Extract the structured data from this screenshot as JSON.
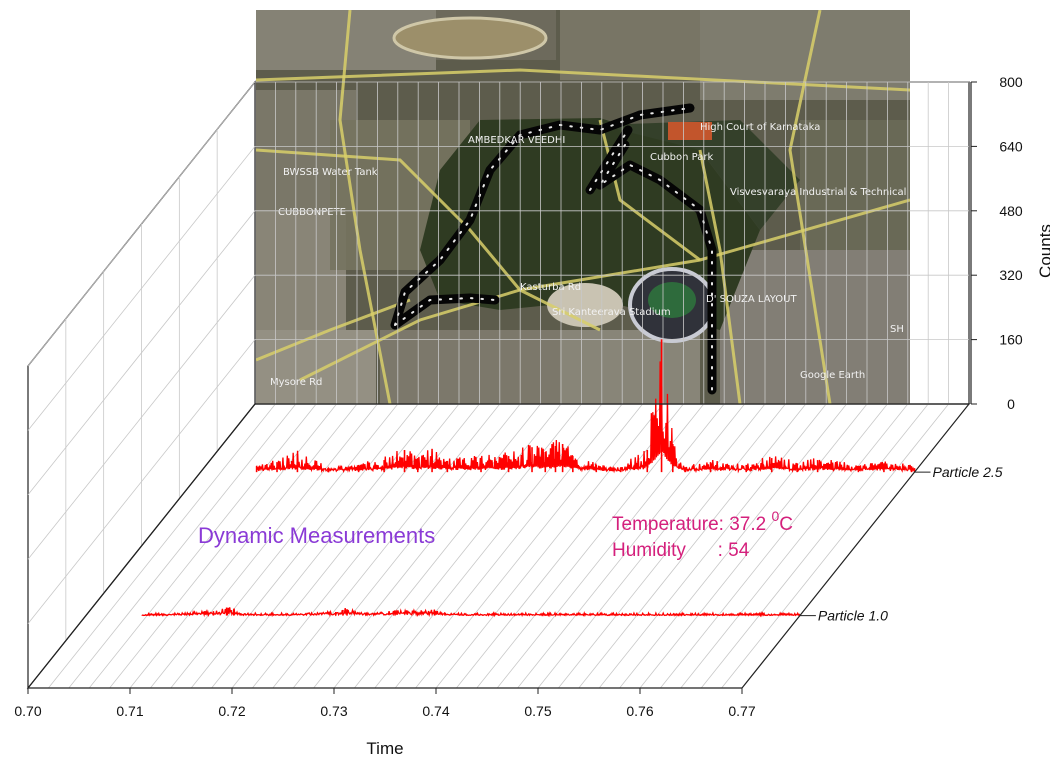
{
  "chart_data": {
    "type": "line",
    "projection": "3d-waterfall",
    "xlabel": "Time",
    "zlabel": "Counts",
    "xlim": [
      0.7,
      0.77
    ],
    "x_ticks": [
      "0.70",
      "0.71",
      "0.72",
      "0.73",
      "0.74",
      "0.75",
      "0.76",
      "0.77"
    ],
    "zlim": [
      0,
      800
    ],
    "z_ticks": [
      "0",
      "160",
      "320",
      "480",
      "640",
      "800"
    ],
    "grid": true,
    "line_color": "#ff0000",
    "series": [
      {
        "name": "Particle 1.0",
        "x": [
          0.7055,
          0.708,
          0.7125,
          0.7138,
          0.7145,
          0.7152,
          0.7162,
          0.72,
          0.7245,
          0.7252,
          0.7256,
          0.7275,
          0.7302,
          0.7342,
          0.7352,
          0.7368,
          0.745,
          0.77
        ],
        "values": [
          1,
          2,
          11,
          20,
          16,
          6,
          3,
          2,
          9,
          14,
          16,
          3,
          11,
          12,
          6,
          2,
          2,
          2
        ]
      },
      {
        "name": "Particle 2.5",
        "x": [
          0.7055,
          0.7075,
          0.7095,
          0.7125,
          0.7155,
          0.718,
          0.72,
          0.7213,
          0.7227,
          0.7242,
          0.7275,
          0.7302,
          0.7325,
          0.7338,
          0.7348,
          0.7355,
          0.7365,
          0.7388,
          0.7412,
          0.7438,
          0.7452,
          0.7463,
          0.7475,
          0.75,
          0.7535,
          0.756,
          0.7585,
          0.7605,
          0.7645,
          0.767,
          0.7697,
          0.77
        ],
        "values": [
          15,
          25,
          45,
          10,
          18,
          30,
          55,
          32,
          58,
          28,
          35,
          40,
          62,
          50,
          65,
          70,
          40,
          18,
          12,
          55,
          330,
          70,
          12,
          25,
          18,
          35,
          22,
          30,
          15,
          22,
          15,
          10
        ]
      }
    ],
    "annotations": [
      {
        "text": "Dynamic Measurements",
        "color": "#8a3ad6"
      },
      {
        "text": "Temperature: 37.2 ",
        "superscript": "0",
        "unit": "C",
        "color": "#d4207c"
      },
      {
        "text": "Humidity      : 54",
        "color": "#d4207c"
      }
    ],
    "background_image": {
      "type": "satellite-map",
      "labels": [
        "AMBEDKAR VEEDHI",
        "Cubbon Park",
        "Visvesvaraya Industrial & Technical Museum",
        "CUBBONPETE",
        "BWSSB Water Tank",
        "D' SOUZA LAYOUT",
        "Sri Kanteerava Stadium",
        "Kasturba Rd",
        "Mysore Rd",
        "High Court of Karnataka",
        "Google Earth",
        "SH"
      ]
    }
  }
}
